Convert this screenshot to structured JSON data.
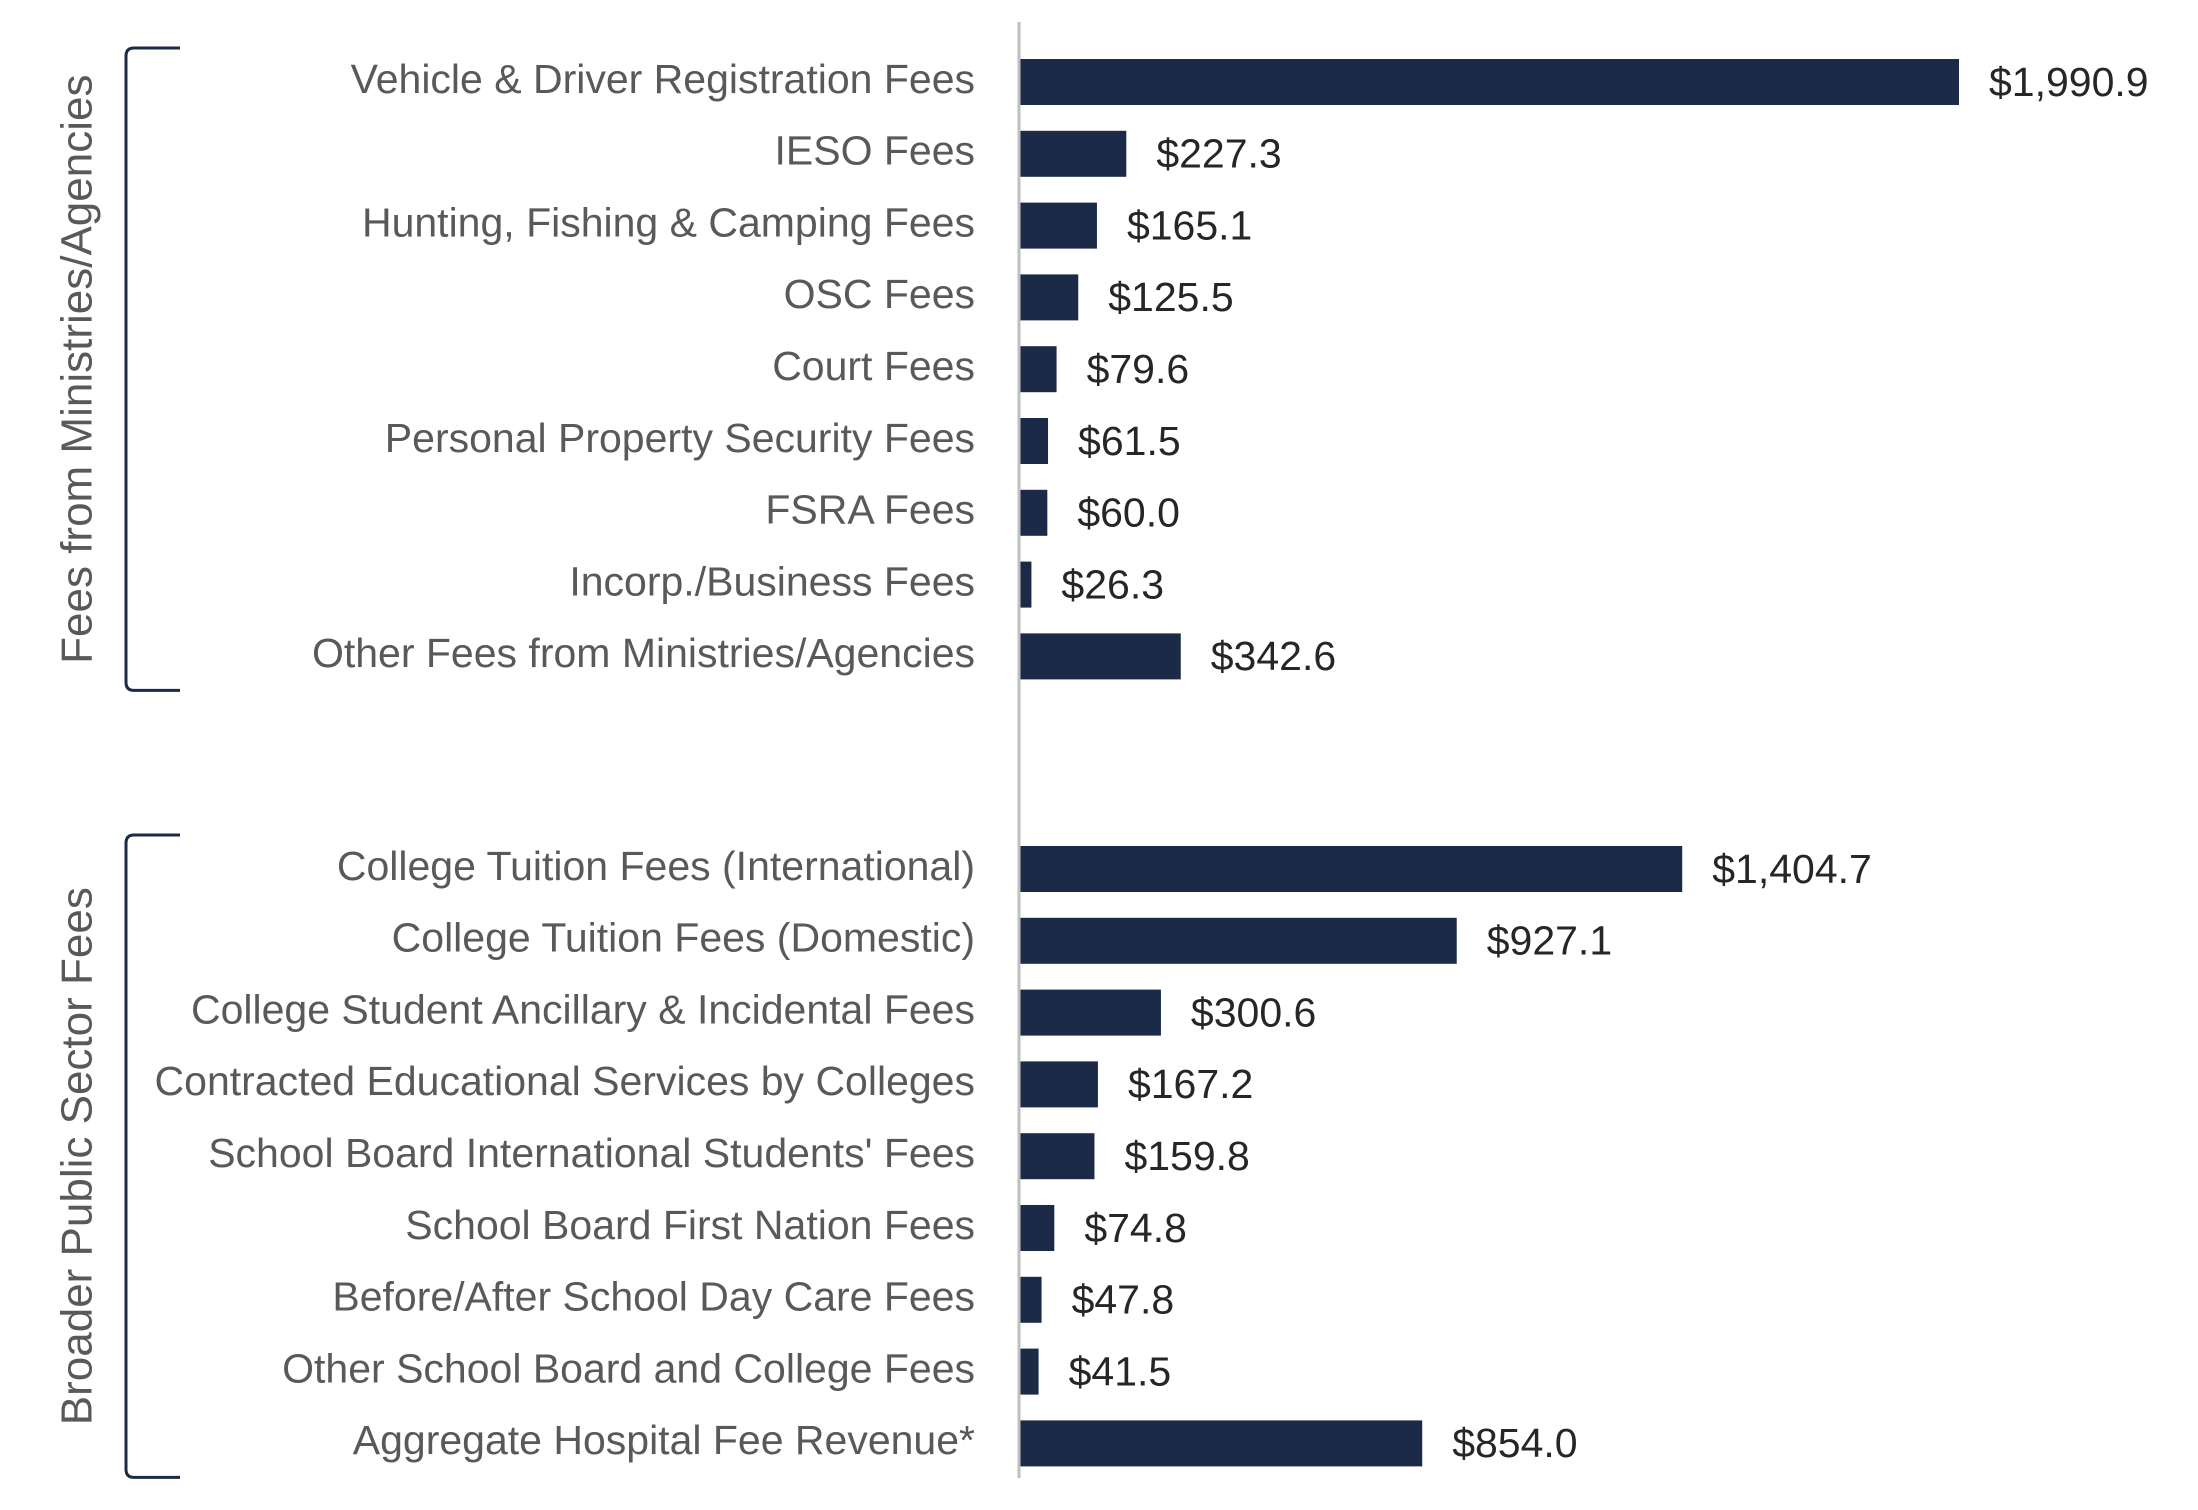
{
  "chart_data": {
    "type": "bar",
    "orientation": "horizontal",
    "bar_color": "#1b2a47",
    "axis_color": "#bfbfbf",
    "bracket_color": "#1b2a47",
    "value_prefix": "$",
    "groups": [
      {
        "name": "Fees from Ministries/Agencies",
        "categories": [
          "Vehicle & Driver Registration Fees",
          "IESO Fees",
          "Hunting, Fishing & Camping Fees",
          "OSC Fees",
          "Court Fees",
          "Personal Property Security Fees",
          "FSRA Fees",
          "Incorp./Business Fees",
          "Other Fees from Ministries/Agencies"
        ],
        "values": [
          1990.9,
          227.3,
          165.1,
          125.5,
          79.6,
          61.5,
          60.0,
          26.3,
          342.6
        ],
        "labels": [
          "$1,990.9",
          "$227.3",
          "$165.1",
          "$125.5",
          "$79.6",
          "$61.5",
          "$60.0",
          "$26.3",
          "$342.6"
        ]
      },
      {
        "name": "Broader Public Sector Fees",
        "categories": [
          "College Tuition Fees (International)",
          "College Tuition Fees (Domestic)",
          "College Student Ancillary & Incidental Fees",
          "Contracted Educational Services by Colleges",
          "School Board International Students' Fees",
          "School Board First Nation Fees",
          "Before/After School Day Care Fees",
          "Other School Board and College Fees",
          "Aggregate Hospital Fee Revenue*"
        ],
        "values": [
          1404.7,
          927.1,
          300.6,
          167.2,
          159.8,
          74.8,
          47.8,
          41.5,
          854.0
        ],
        "labels": [
          "$1,404.7",
          "$927.1",
          "$300.6",
          "$167.2",
          "$159.8",
          "$74.8",
          "$47.8",
          "$41.5",
          "$854.0"
        ]
      }
    ],
    "xlim": [
      0,
      1990.9
    ],
    "grid": false,
    "legend": "none"
  }
}
